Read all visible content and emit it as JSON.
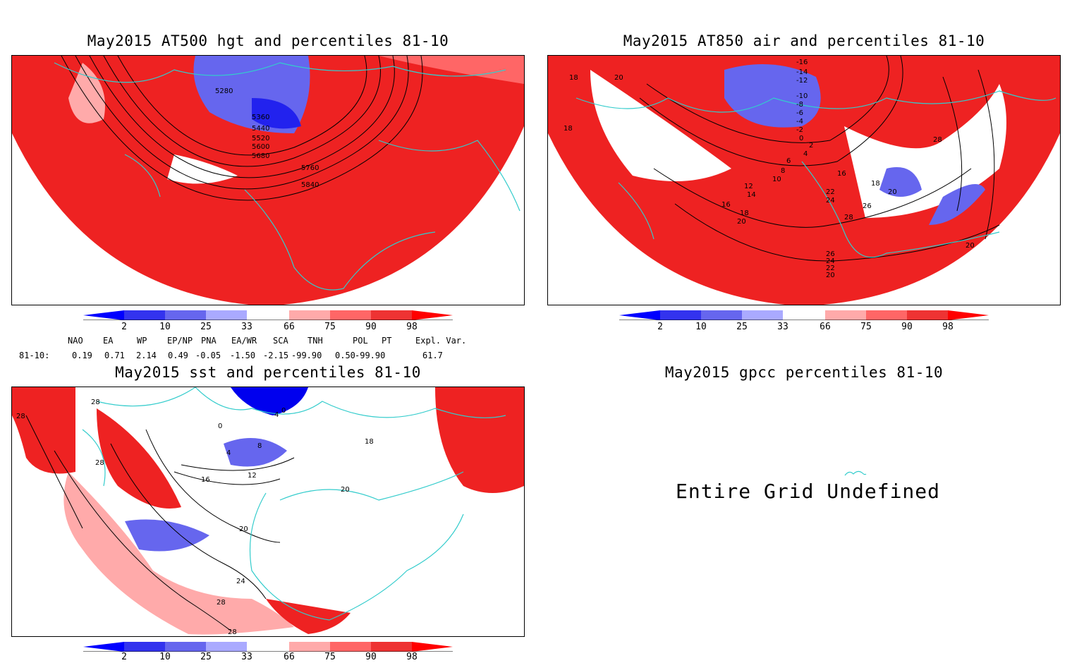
{
  "panels": {
    "hgt500": {
      "title": "May2015 AT500 hgt and percentiles 81-10",
      "contour_labels": [
        "5280",
        "5360",
        "5440",
        "5520",
        "5600",
        "5680",
        "5760",
        "5840"
      ]
    },
    "air850": {
      "title": "May2015 AT850 air and percentiles 81-10",
      "contour_labels": [
        "-16",
        "-14",
        "-12",
        "-10",
        "-8",
        "-6",
        "-4",
        "-2",
        "0",
        "2",
        "4",
        "6",
        "8",
        "10",
        "12",
        "14",
        "16",
        "18",
        "20",
        "22",
        "24",
        "26",
        "28",
        "18",
        "20",
        "16",
        "18",
        "20",
        "18",
        "28",
        "26",
        "24",
        "22",
        "20",
        "20"
      ]
    },
    "sst": {
      "title": "May2015 sst and percentiles 81-10",
      "contour_labels": [
        "28",
        "28",
        "28",
        "0",
        "0",
        "4",
        "8",
        "4",
        "12",
        "16",
        "20",
        "18",
        "20",
        "24",
        "28",
        "28"
      ]
    },
    "gpcc": {
      "title": "May2015 gpcc percentiles 81-10",
      "message": "Entire Grid Undefined"
    }
  },
  "colorbar": {
    "ticks": [
      "2",
      "10",
      "25",
      "33",
      "66",
      "75",
      "90",
      "98"
    ],
    "colors": [
      "#0000ff",
      "#3333ee",
      "#6666ee",
      "#aaaaff",
      "#ffffff",
      "#ffaaaa",
      "#ff6666",
      "#ee3333",
      "#ff0000"
    ]
  },
  "indices": {
    "headers": [
      "NAO",
      "EA",
      "WP",
      "EP/NP",
      "PNA",
      "EA/WR",
      "SCA",
      "TNH",
      "POL",
      "PT",
      "Expl. Var."
    ],
    "row_label": "81-10:",
    "values": [
      "0.19",
      "0.71",
      "2.14",
      "0.49",
      "-0.05",
      "-1.50",
      "-2.15",
      "-99.90",
      "0.50",
      "-99.90",
      "61.7"
    ]
  },
  "colors": {
    "coast": "#33cccc",
    "red": "#ee2222",
    "lightred": "#ff8888",
    "blue": "#2222ee",
    "lightblue": "#8888ff"
  }
}
